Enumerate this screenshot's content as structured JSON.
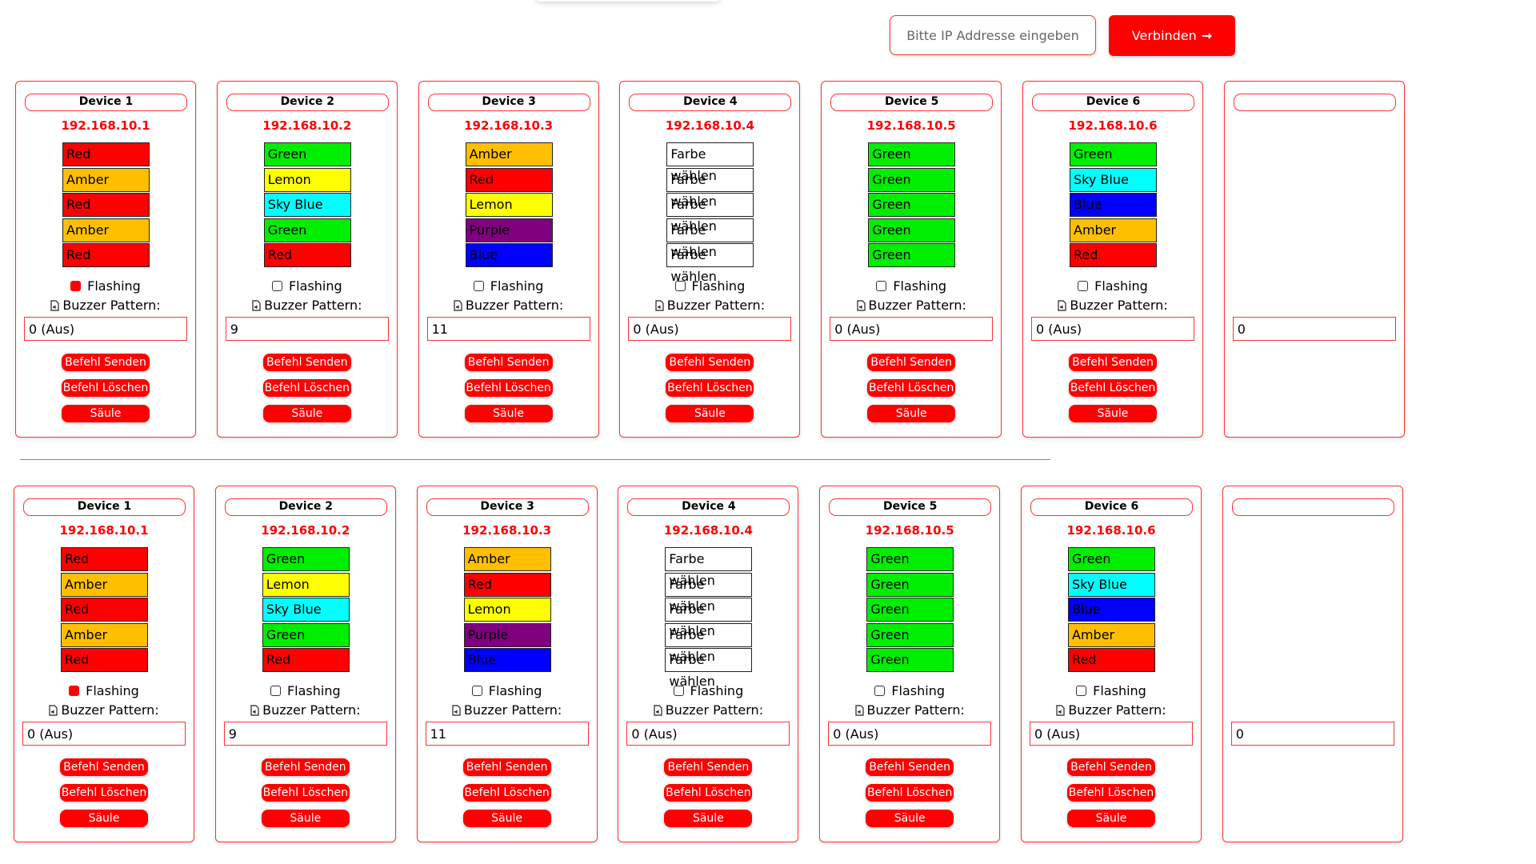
{
  "header": {
    "ip_placeholder": "Bitte IP Addresse eingeben",
    "connect_label": "Verbinden",
    "connect_icon": "arrow-right-icon"
  },
  "labels": {
    "flashing": "Flashing",
    "buzzer_pattern": "Buzzer Pattern:",
    "send": "Befehl Senden",
    "delete": "Befehl Löschen",
    "remove": "Säule entfernen"
  },
  "colors": {
    "Red": "#ff0000",
    "Amber": "#ffbf00",
    "Green": "#00ee00",
    "Lemon": "#ffff00",
    "Sky Blue": "#00ffff",
    "Purple": "#800080",
    "Blue": "#0000ff",
    "Farbe wählen": "#ffffff",
    "accent": "#ff0000"
  },
  "devices": [
    {
      "name": "Device 1",
      "ip": "192.168.10.1",
      "lamps": [
        "Red",
        "Amber",
        "Red",
        "Amber",
        "Red"
      ],
      "flashing": true,
      "pattern": "0 (Aus)"
    },
    {
      "name": "Device 2",
      "ip": "192.168.10.2",
      "lamps": [
        "Green",
        "Lemon",
        "Sky Blue",
        "Green",
        "Red"
      ],
      "flashing": false,
      "pattern": "9"
    },
    {
      "name": "Device 3",
      "ip": "192.168.10.3",
      "lamps": [
        "Amber",
        "Red",
        "Lemon",
        "Purple",
        "Blue"
      ],
      "flashing": false,
      "pattern": "11"
    },
    {
      "name": "Device 4",
      "ip": "192.168.10.4",
      "lamps": [
        "Farbe wählen",
        "Farbe wählen",
        "Farbe wählen",
        "Farbe wählen",
        "Farbe wählen"
      ],
      "flashing": false,
      "pattern": "0 (Aus)"
    },
    {
      "name": "Device 5",
      "ip": "192.168.10.5",
      "lamps": [
        "Green",
        "Green",
        "Green",
        "Green",
        "Green"
      ],
      "flashing": false,
      "pattern": "0 (Aus)"
    },
    {
      "name": "Device 6",
      "ip": "192.168.10.6",
      "lamps": [
        "Green",
        "Sky Blue",
        "Blue",
        "Amber",
        "Red"
      ],
      "flashing": false,
      "pattern": "0 (Aus)"
    }
  ],
  "partial_seventh": {
    "pattern": "0"
  }
}
